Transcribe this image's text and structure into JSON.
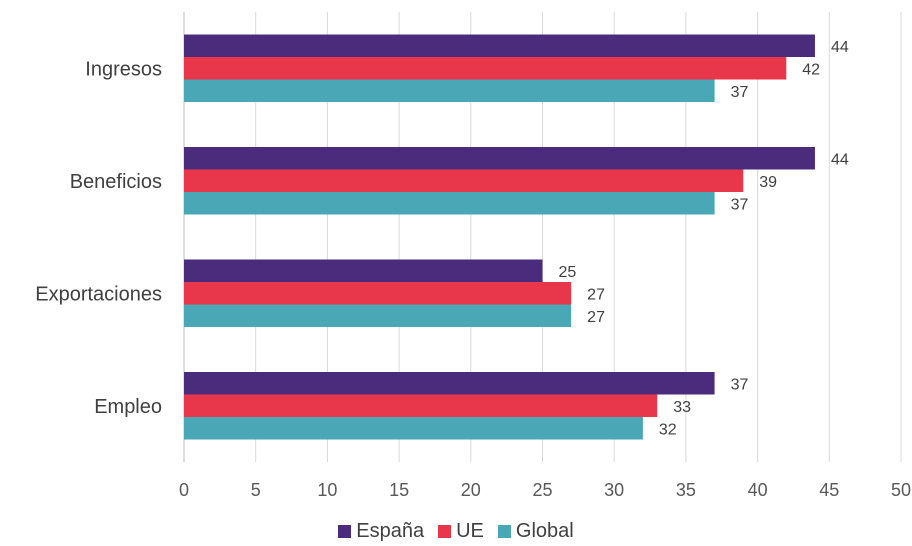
{
  "chart_data": {
    "type": "bar",
    "orientation": "horizontal",
    "categories": [
      "Ingresos",
      "Beneficios",
      "Exportaciones",
      "Empleo"
    ],
    "series": [
      {
        "name": "España",
        "color": "#4b2c7c",
        "values": [
          44,
          44,
          25,
          37
        ]
      },
      {
        "name": "UE",
        "color": "#e8374a",
        "values": [
          42,
          39,
          27,
          33
        ]
      },
      {
        "name": "Global",
        "color": "#4aa7b5",
        "values": [
          37,
          37,
          27,
          32
        ]
      }
    ],
    "xlim": [
      0,
      50
    ],
    "xticks": [
      0,
      5,
      10,
      15,
      20,
      25,
      30,
      35,
      40,
      45,
      50
    ],
    "grid": "vertical",
    "legend_position": "bottom",
    "title": "",
    "xlabel": "",
    "ylabel": ""
  }
}
